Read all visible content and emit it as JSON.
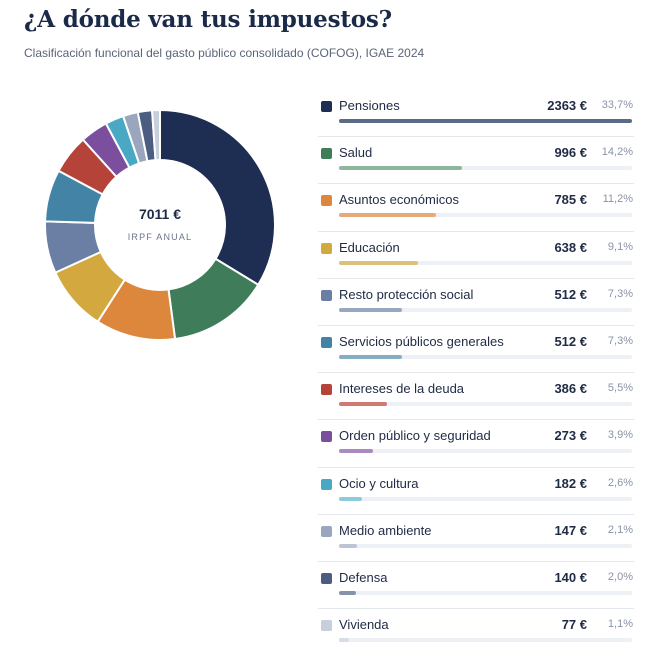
{
  "header": {
    "title": "¿A dónde van tus impuestos?",
    "subtitle": "Clasificación funcional del gasto público consolidado (COFOG), IGAE 2024"
  },
  "center": {
    "value": "7011 €",
    "label": "IRPF ANUAL"
  },
  "chart_data": {
    "type": "pie",
    "title": "¿A dónde van tus impuestos?",
    "subtitle": "Clasificación funcional del gasto público consolidado (COFOG), IGAE 2024",
    "total": 7011,
    "unit": "€",
    "legend_position": "right",
    "categories": [
      {
        "name": "Pensiones",
        "value": 2363,
        "amount": "2363 €",
        "pct": "33,7%",
        "color": "#1e2d52",
        "bar_color": "#5b6a85"
      },
      {
        "name": "Salud",
        "value": 996,
        "amount": "996 €",
        "pct": "14,2%",
        "color": "#3f7d5a",
        "bar_color": "#8db89b"
      },
      {
        "name": "Asuntos económicos",
        "value": 785,
        "amount": "785 €",
        "pct": "11,2%",
        "color": "#dd873c",
        "bar_color": "#e5aa7a"
      },
      {
        "name": "Educación",
        "value": 638,
        "amount": "638 €",
        "pct": "9,1%",
        "color": "#d3a83f",
        "bar_color": "#dcc07e"
      },
      {
        "name": "Resto protección social",
        "value": 512,
        "amount": "512 €",
        "pct": "7,3%",
        "color": "#6b7ea3",
        "bar_color": "#9aa7c0"
      },
      {
        "name": "Servicios públicos generales",
        "value": 512,
        "amount": "512 €",
        "pct": "7,3%",
        "color": "#4283a6",
        "bar_color": "#86adc4"
      },
      {
        "name": "Intereses de la deuda",
        "value": 386,
        "amount": "386 €",
        "pct": "5,5%",
        "color": "#b5433a",
        "bar_color": "#d07a72"
      },
      {
        "name": "Orden público y seguridad",
        "value": 273,
        "amount": "273 €",
        "pct": "3,9%",
        "color": "#7b4f9e",
        "bar_color": "#a98bc1"
      },
      {
        "name": "Ocio y cultura",
        "value": 182,
        "amount": "182 €",
        "pct": "2,6%",
        "color": "#49a8c4",
        "bar_color": "#8ccbdc"
      },
      {
        "name": "Medio ambiente",
        "value": 147,
        "amount": "147 €",
        "pct": "2,1%",
        "color": "#9aa6be",
        "bar_color": "#bcc5d5"
      },
      {
        "name": "Defensa",
        "value": 140,
        "amount": "140 €",
        "pct": "2,0%",
        "color": "#4b5d80",
        "bar_color": "#8593ab"
      },
      {
        "name": "Vivienda",
        "value": 77,
        "amount": "77 €",
        "pct": "1,1%",
        "color": "#c6cfdb",
        "bar_color": "#d6dde6"
      }
    ]
  }
}
